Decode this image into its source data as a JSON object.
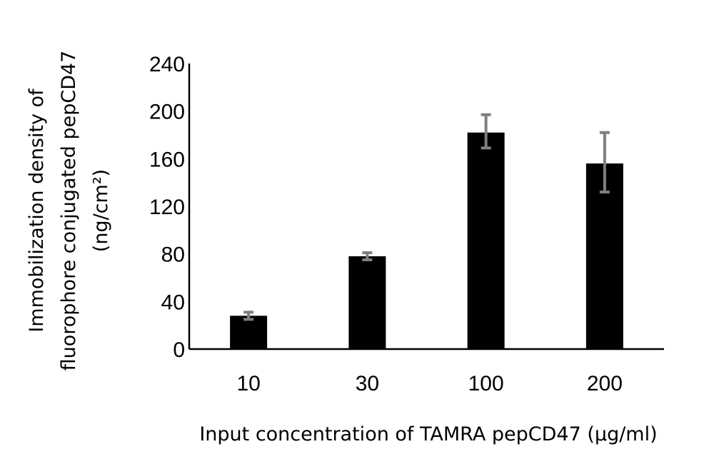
{
  "chart_data": {
    "type": "bar",
    "categories": [
      "10",
      "30",
      "100",
      "200"
    ],
    "values": [
      28,
      78,
      182,
      156
    ],
    "error_high": [
      31,
      81,
      197,
      182
    ],
    "error_low": [
      25,
      75,
      169,
      132
    ],
    "ylim": [
      0,
      240
    ],
    "yticks": [
      "0",
      "40",
      "80",
      "120",
      "160",
      "200",
      "240"
    ],
    "xlabel": "Input concentration of TAMRA pepCD47 (µg/ml)",
    "ylabel_lines": [
      "Immobilization density of",
      "fluorophore conjugated pepCD47",
      "(ng/cm²)"
    ],
    "bar_color": "#000000",
    "error_color": "#7f7f7f",
    "grid": false,
    "legend": "none"
  }
}
